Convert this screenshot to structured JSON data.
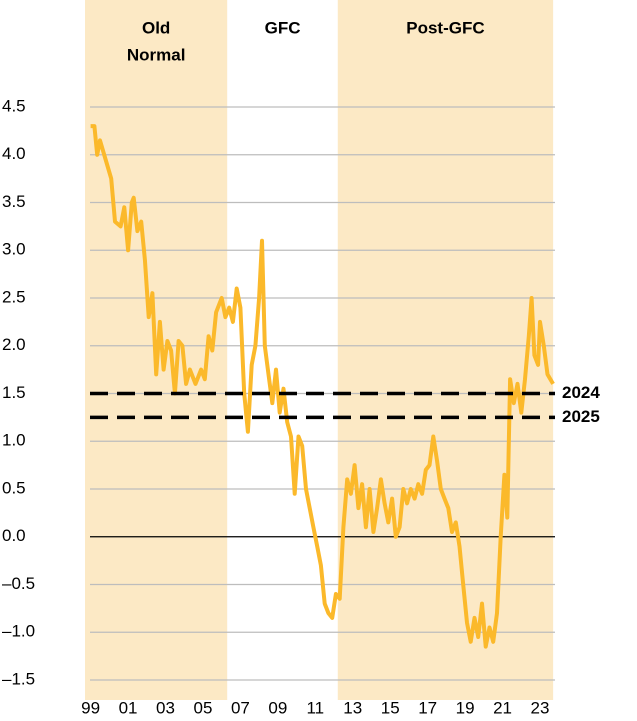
{
  "chart_data": {
    "type": "line",
    "regions": [
      {
        "label": [
          "Old",
          "Normal"
        ],
        "start": 1998.7,
        "end": 2006.3,
        "color": "#fce9c5"
      },
      {
        "label": [
          "GFC"
        ],
        "start": 2006.3,
        "end": 2012.2,
        "color": "#ffffff"
      },
      {
        "label": [
          "Post-GFC"
        ],
        "start": 2012.2,
        "end": 2023.7,
        "color": "#fce9c5"
      }
    ],
    "x": [
      1999.0,
      1999.2,
      1999.35,
      1999.5,
      1999.8,
      2000.1,
      2000.3,
      2000.6,
      2000.8,
      2001.0,
      2001.2,
      2001.3,
      2001.5,
      2001.7,
      2001.9,
      2002.1,
      2002.3,
      2002.5,
      2002.7,
      2002.9,
      2003.1,
      2003.3,
      2003.5,
      2003.7,
      2003.9,
      2004.1,
      2004.3,
      2004.6,
      2004.9,
      2005.1,
      2005.3,
      2005.5,
      2005.7,
      2006.0,
      2006.2,
      2006.4,
      2006.6,
      2006.8,
      2007.0,
      2007.2,
      2007.4,
      2007.6,
      2007.8,
      2008.0,
      2008.15,
      2008.3,
      2008.5,
      2008.7,
      2008.9,
      2009.1,
      2009.3,
      2009.5,
      2009.7,
      2009.9,
      2010.1,
      2010.3,
      2010.5,
      2010.7,
      2010.9,
      2011.1,
      2011.3,
      2011.5,
      2011.7,
      2011.9,
      2012.1,
      2012.3,
      2012.5,
      2012.7,
      2012.9,
      2013.1,
      2013.3,
      2013.5,
      2013.7,
      2013.9,
      2014.1,
      2014.3,
      2014.5,
      2014.7,
      2014.9,
      2015.1,
      2015.3,
      2015.5,
      2015.7,
      2015.9,
      2016.1,
      2016.3,
      2016.5,
      2016.7,
      2016.9,
      2017.1,
      2017.3,
      2017.5,
      2017.7,
      2017.9,
      2018.1,
      2018.3,
      2018.5,
      2018.7,
      2018.9,
      2019.1,
      2019.3,
      2019.5,
      2019.7,
      2019.9,
      2020.1,
      2020.3,
      2020.5,
      2020.7,
      2020.9,
      2021.1,
      2021.25,
      2021.4,
      2021.6,
      2021.8,
      2022.0,
      2022.2,
      2022.4,
      2022.55,
      2022.7,
      2022.9,
      2023.0,
      2023.2,
      2023.4,
      2023.7
    ],
    "series": [
      {
        "color": "#fbb92b",
        "values": [
          4.3,
          4.3,
          4.0,
          4.15,
          3.95,
          3.75,
          3.3,
          3.25,
          3.45,
          3.0,
          3.5,
          3.55,
          3.2,
          3.3,
          2.9,
          2.3,
          2.55,
          1.7,
          2.25,
          1.75,
          2.05,
          1.95,
          1.5,
          2.05,
          2.0,
          1.6,
          1.75,
          1.6,
          1.75,
          1.65,
          2.1,
          1.95,
          2.35,
          2.5,
          2.3,
          2.4,
          2.25,
          2.6,
          2.4,
          1.5,
          1.1,
          1.8,
          2.0,
          2.5,
          3.1,
          2.0,
          1.7,
          1.4,
          1.75,
          1.3,
          1.55,
          1.2,
          1.05,
          0.45,
          1.05,
          0.95,
          0.5,
          0.3,
          0.1,
          -0.1,
          -0.3,
          -0.7,
          -0.8,
          -0.85,
          -0.6,
          -0.65,
          0.1,
          0.6,
          0.45,
          0.75,
          0.3,
          0.55,
          0.1,
          0.5,
          0.05,
          0.3,
          0.6,
          0.35,
          0.15,
          0.4,
          0.0,
          0.1,
          0.5,
          0.35,
          0.5,
          0.4,
          0.55,
          0.45,
          0.7,
          0.75,
          1.05,
          0.8,
          0.5,
          0.4,
          0.3,
          0.05,
          0.15,
          -0.1,
          -0.5,
          -0.9,
          -1.1,
          -0.85,
          -1.05,
          -0.7,
          -1.15,
          -0.95,
          -1.1,
          -0.8,
          0.0,
          0.65,
          0.2,
          1.65,
          1.4,
          1.6,
          1.3,
          1.65,
          2.1,
          2.5,
          1.9,
          1.8,
          2.25,
          2.0,
          1.7,
          1.6
        ]
      }
    ],
    "reference_lines": [
      {
        "value": 1.5,
        "label": "2024"
      },
      {
        "value": 1.25,
        "label": "2025"
      }
    ],
    "xlim": [
      1998.7,
      2023.8
    ],
    "xticks": [
      {
        "value": 1999,
        "label": "99"
      },
      {
        "value": 2001,
        "label": "01"
      },
      {
        "value": 2003,
        "label": "03"
      },
      {
        "value": 2005,
        "label": "05"
      },
      {
        "value": 2007,
        "label": "07"
      },
      {
        "value": 2009,
        "label": "09"
      },
      {
        "value": 2011,
        "label": "11"
      },
      {
        "value": 2013,
        "label": "13"
      },
      {
        "value": 2015,
        "label": "15"
      },
      {
        "value": 2017,
        "label": "17"
      },
      {
        "value": 2019,
        "label": "19"
      },
      {
        "value": 2021,
        "label": "21"
      },
      {
        "value": 2023,
        "label": "23"
      }
    ],
    "ylim": [
      -1.5,
      4.5
    ],
    "yticks": [
      {
        "value": -1.5,
        "label": "–1.5"
      },
      {
        "value": -1.0,
        "label": "–1.0"
      },
      {
        "value": -0.5,
        "label": "–0.5"
      },
      {
        "value": 0,
        "label": "0.0"
      },
      {
        "value": 0.5,
        "label": "0.5"
      },
      {
        "value": 1.0,
        "label": "1.0"
      },
      {
        "value": 1.5,
        "label": "1.5"
      },
      {
        "value": 2.0,
        "label": "2.0"
      },
      {
        "value": 2.5,
        "label": "2.5"
      },
      {
        "value": 3.0,
        "label": "3.0"
      },
      {
        "value": 3.5,
        "label": "3.5"
      },
      {
        "value": 4.0,
        "label": "4.0"
      },
      {
        "value": 4.5,
        "label": "4.5"
      }
    ],
    "grid": true
  }
}
